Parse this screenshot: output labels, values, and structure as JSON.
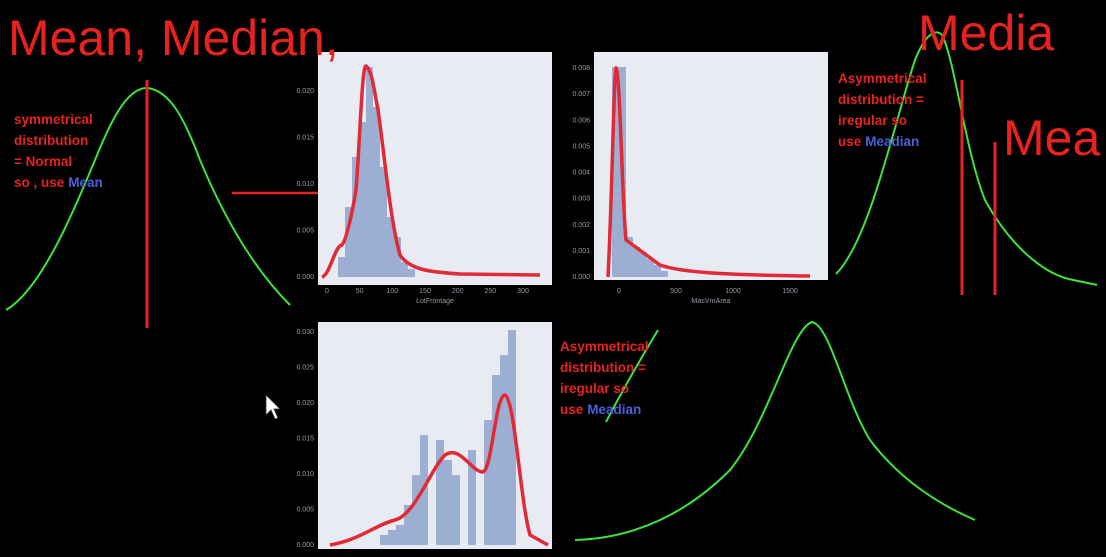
{
  "heading": {
    "title": "Mean, Median,",
    "right_top": "Media",
    "right_mid": "Mea"
  },
  "notes": [
    {
      "lines": [
        "symmetrical",
        "distribution",
        "= Normal",
        "so , use"
      ],
      "highlight": "Mean"
    },
    {
      "lines": [
        "Asymmetrical",
        "distribution =",
        "iregular so",
        "use"
      ],
      "highlight": "Meadian"
    },
    {
      "lines": [
        "Asymmetrical",
        "distribution =",
        "iregular so",
        "use"
      ],
      "highlight": "Meadian"
    }
  ],
  "panels": [
    {
      "yticks": [
        "0.000",
        "0.005",
        "0.010",
        "0.015",
        "0.020"
      ],
      "xticks": [
        "0",
        "50",
        "100",
        "150",
        "200",
        "250",
        "300"
      ],
      "xlabel": "LotFrontage"
    },
    {
      "yticks": [
        "0.000",
        "0.001",
        "0.002",
        "0.003",
        "0.004",
        "0.005",
        "0.006",
        "0.007",
        "0.008"
      ],
      "xticks": [
        "0",
        "500",
        "1000",
        "1500"
      ],
      "xlabel": "MasVnrArea"
    },
    {
      "yticks": [
        "0.000",
        "0.005",
        "0.010",
        "0.015",
        "0.020",
        "0.025",
        "0.030"
      ],
      "xticks": [],
      "xlabel": ""
    }
  ]
}
